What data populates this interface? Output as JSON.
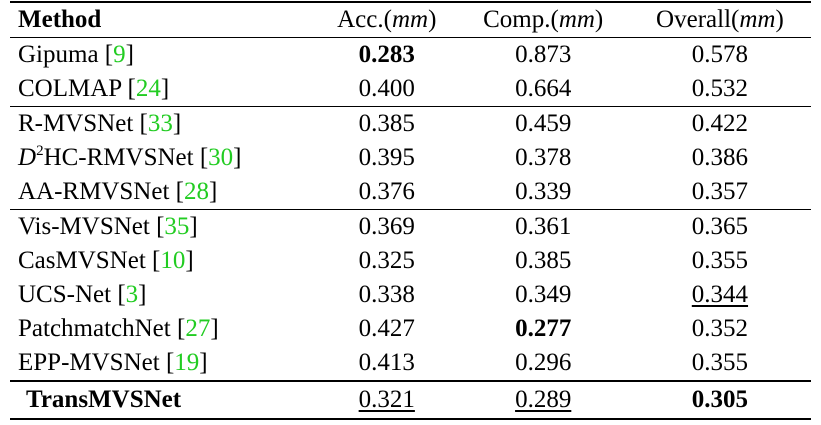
{
  "table": {
    "headers": {
      "method": "Method",
      "acc": "Acc.",
      "comp": "Comp.",
      "overall": "Overall",
      "unit": "mm"
    },
    "rows": [
      {
        "name": "Gipuma",
        "ref": "9",
        "acc": "0.283",
        "comp": "0.873",
        "overall": "0.578"
      },
      {
        "name": "COLMAP",
        "ref": "24",
        "acc": "0.400",
        "comp": "0.664",
        "overall": "0.532"
      },
      {
        "name": "R-MVSNet",
        "ref": "33",
        "acc": "0.385",
        "comp": "0.459",
        "overall": "0.422"
      },
      {
        "name_prefix": "D",
        "name_sup": "2",
        "name": "HC-RMVSNet",
        "ref": "30",
        "acc": "0.395",
        "comp": "0.378",
        "overall": "0.386"
      },
      {
        "name": "AA-RMVSNet",
        "ref": "28",
        "acc": "0.376",
        "comp": "0.339",
        "overall": "0.357"
      },
      {
        "name": "Vis-MVSNet",
        "ref": "35",
        "acc": "0.369",
        "comp": "0.361",
        "overall": "0.365"
      },
      {
        "name": "CasMVSNet",
        "ref": "10",
        "acc": "0.325",
        "comp": "0.385",
        "overall": "0.355"
      },
      {
        "name": "UCS-Net",
        "ref": "3",
        "acc": "0.338",
        "comp": "0.349",
        "overall": "0.344"
      },
      {
        "name": "PatchmatchNet",
        "ref": "27",
        "acc": "0.427",
        "comp": "0.277",
        "overall": "0.352"
      },
      {
        "name": "EPP-MVSNet",
        "ref": "19",
        "acc": "0.413",
        "comp": "0.296",
        "overall": "0.355"
      },
      {
        "name": "TransMVSNet",
        "acc": "0.321",
        "comp": "0.289",
        "overall": "0.305"
      }
    ]
  },
  "colors": {
    "citation": "#22cc22",
    "text": "#000000"
  }
}
